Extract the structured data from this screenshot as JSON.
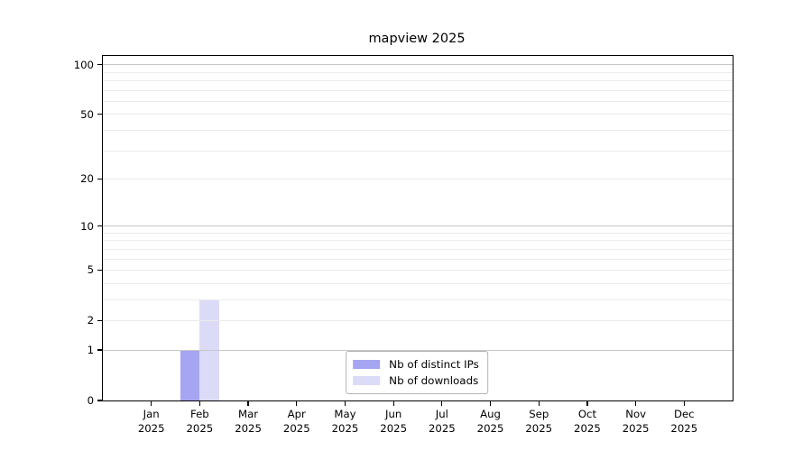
{
  "chart_data": {
    "type": "bar",
    "title": "mapview 2025",
    "categories": [
      "Jan 2025",
      "Feb 2025",
      "Mar 2025",
      "Apr 2025",
      "May 2025",
      "Jun 2025",
      "Jul 2025",
      "Aug 2025",
      "Sep 2025",
      "Oct 2025",
      "Nov 2025",
      "Dec 2025"
    ],
    "series": [
      {
        "name": "Nb of distinct IPs",
        "color": "#a5a5f2",
        "values": [
          0,
          1,
          0,
          0,
          0,
          0,
          0,
          0,
          0,
          0,
          0,
          0
        ]
      },
      {
        "name": "Nb of downloads",
        "color": "#dbdbf8",
        "values": [
          0,
          3,
          0,
          0,
          0,
          0,
          0,
          0,
          0,
          0,
          0,
          0
        ]
      }
    ],
    "yscale": "log1p",
    "ylim": [
      0,
      113
    ],
    "y_tick_values": [
      0,
      1,
      2,
      5,
      10,
      20,
      50,
      100
    ],
    "y_tick_labels": [
      "0",
      "1",
      "2",
      "5",
      "10",
      "20",
      "50",
      "100"
    ],
    "y_minor_gridlines": [
      2,
      3,
      4,
      5,
      6,
      7,
      8,
      9,
      20,
      30,
      40,
      50,
      60,
      70,
      80,
      90
    ],
    "y_major_gridlines": [
      1,
      10,
      100
    ],
    "xlabel": "",
    "ylabel": "",
    "grid": true,
    "legend_position": "lower center"
  },
  "colors": {
    "background": "#ffffff",
    "axis": "#000000",
    "text": "#000000",
    "grid_minor": "#ebebeb",
    "grid_major": "#c8c8c8",
    "legend_border": "#b3b3b3"
  }
}
